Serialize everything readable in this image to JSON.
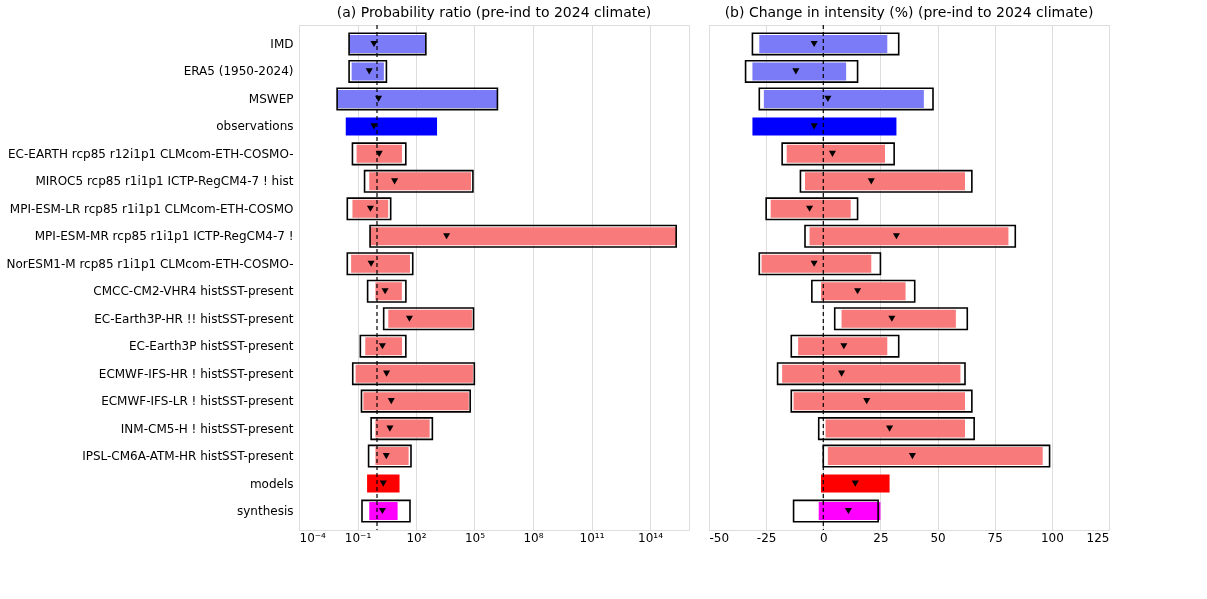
{
  "chart_data": [
    {
      "type": "bar",
      "orientation": "horizontal",
      "title": "(a) Probability ratio (pre-ind to 2024 climate)",
      "log": "x",
      "grid": "x",
      "categories": [
        "IMD",
        "ERA5 (1950-2024)",
        "MSWEP",
        "observations",
        "EC-EARTH rcp85 r12i1p1 CLMcom-ETH-COSMO-",
        "MIROC5 rcp85 r1i1p1 ICTP-RegCM4-7 ! hist",
        "MPI-ESM-LR rcp85 r1i1p1 CLMcom-ETH-COSMO",
        "MPI-ESM-MR rcp85 r1i1p1 ICTP-RegCM4-7 !",
        "NorESM1-M rcp85 r1i1p1 CLMcom-ETH-COSMO-",
        "CMCC-CM2-VHR4 histSST-present",
        "EC-Earth3P-HR !! histSST-present",
        "EC-Earth3P histSST-present",
        "ECMWF-IFS-HR ! histSST-present",
        "ECMWF-IFS-LR ! histSST-present",
        "INM-CM5-H ! histSST-present",
        "IPSL-CM6A-ATM-HR histSST-present",
        "models",
        "synthesis"
      ],
      "xlim": [
        0.0001,
        1e+16
      ],
      "xticks": [
        {
          "value": 0.0001,
          "label": "10⁻⁴"
        },
        {
          "value": 0.1,
          "label": "10⁻¹"
        },
        {
          "value": 100,
          "label": "10²"
        },
        {
          "value": 100000,
          "label": "10⁵"
        },
        {
          "value": 100000000,
          "label": "10⁸"
        },
        {
          "value": 100000000000,
          "label": "10¹¹"
        },
        {
          "value": 100000000000000,
          "label": "10¹⁴"
        }
      ],
      "ref_lines": [
        {
          "axis": "x",
          "value": 1,
          "line_style": "dashed",
          "color": "#000000"
        }
      ],
      "series": [
        {
          "type": "bar",
          "base": [
            0.037,
            0.05,
            0.009,
            0.025,
            0.09,
            0.4,
            0.055,
            0.44,
            0.047,
            0.83,
            3.8,
            0.25,
            0.08,
            0.2,
            0.83,
            0.83,
            0.31,
            0.4
          ],
          "values": [
            320,
            2.2,
            1500000,
            1200,
            19,
            66000,
            3.7,
            2200000000000000,
            49,
            18,
            74000,
            19,
            83000,
            51000,
            500,
            41,
            14,
            11
          ],
          "colors": [
            "#7b7bf7",
            "#7b7bf7",
            "#7b7bf7",
            "#0000ff",
            "#f87a7a",
            "#f87a7a",
            "#f87a7a",
            "#f87a7a",
            "#f87a7a",
            "#f87a7a",
            "#f87a7a",
            "#f87a7a",
            "#f87a7a",
            "#f87a7a",
            "#f87a7a",
            "#f87a7a",
            "#ff0000",
            "#ff00ff"
          ]
        },
        {
          "type": "bar",
          "color": "#000000",
          "base": [
            0.037,
            0.037,
            0.009,
            null,
            0.055,
            0.23,
            0.03,
            0.44,
            0.03,
            0.33,
            2.2,
            0.14,
            0.057,
            0.16,
            0.5,
            0.37,
            null,
            0.17
          ],
          "values": [
            320,
            3,
            1500000,
            null,
            30,
            83000,
            5,
            2200000000000000,
            68,
            30,
            89000,
            30,
            98000,
            60000,
            690,
            55,
            null,
            49
          ]
        },
        {
          "type": "scatter",
          "marker": "triangle",
          "color": "#000000",
          "values": [
            0.7,
            0.4,
            1.2,
            0.7,
            1.3,
            8,
            0.46,
            3700,
            0.5,
            2.6,
            46,
            1.9,
            3.1,
            5.4,
            4.6,
            3,
            2.1,
            1.9
          ]
        }
      ]
    },
    {
      "type": "bar",
      "orientation": "horizontal",
      "title": "(b) Change in intensity (%) (pre-ind to 2024 climate)",
      "grid": "x",
      "tick_labels": "x",
      "categories": [
        null,
        null,
        null,
        null,
        null,
        null,
        null,
        null,
        null,
        null,
        null,
        null,
        null,
        null,
        null,
        null,
        null,
        null
      ],
      "xlim": [
        -50,
        125
      ],
      "xticks": [
        -50,
        -25,
        0,
        25,
        50,
        75,
        100,
        125
      ],
      "ref_lines": [
        {
          "axis": "x",
          "value": 0,
          "line_style": "dashed",
          "color": "#000000"
        }
      ],
      "series": [
        {
          "type": "bar",
          "base": [
            -28,
            -31,
            -26,
            -31,
            -16,
            -8,
            -23,
            -6,
            -27,
            -1,
            8,
            -11,
            -18,
            -13,
            1,
            2,
            -1,
            -2
          ],
          "values": [
            56,
            41,
            70,
            63,
            43,
            70,
            35,
            87,
            48,
            37,
            50,
            39,
            78,
            75,
            61,
            94,
            30,
            27
          ],
          "colors": [
            "#7b7bf7",
            "#7b7bf7",
            "#7b7bf7",
            "#0000ff",
            "#f87a7a",
            "#f87a7a",
            "#f87a7a",
            "#f87a7a",
            "#f87a7a",
            "#f87a7a",
            "#f87a7a",
            "#f87a7a",
            "#f87a7a",
            "#f87a7a",
            "#f87a7a",
            "#f87a7a",
            "#ff0000",
            "#ff00ff"
          ]
        },
        {
          "type": "bar",
          "color": "#000000",
          "base": [
            -31,
            -34,
            -28,
            null,
            -18,
            -10,
            -25,
            -8,
            -28,
            -5,
            5,
            -14,
            -20,
            -14,
            -2,
            0,
            null,
            -13
          ],
          "values": [
            64,
            49,
            76,
            null,
            49,
            75,
            40,
            92,
            53,
            45,
            58,
            47,
            82,
            79,
            68,
            99,
            null,
            37
          ]
        },
        {
          "type": "scatter",
          "marker": "triangle",
          "color": "#000000",
          "values": [
            -4,
            -12,
            2,
            -4,
            4,
            21,
            -6,
            32,
            -4,
            15,
            30,
            9,
            8,
            19,
            29,
            39,
            14,
            11
          ]
        }
      ]
    }
  ]
}
